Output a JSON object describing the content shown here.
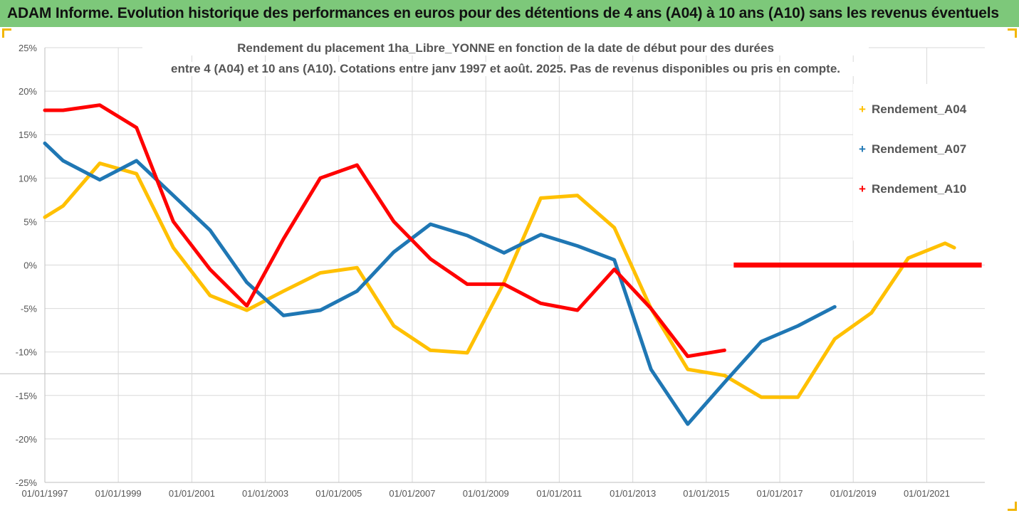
{
  "banner": {
    "title": "ADAM Informe. Evolution historique des performances en euros pour des détentions de 4 ans (A04) à 10 ans (A10) sans les revenus éventuels"
  },
  "colors": {
    "banner_bg": "#7dc87a",
    "gridline": "#d9d9d9",
    "corner_accent": "#f2b600"
  },
  "chart_data": {
    "type": "line",
    "title_line1": "Rendement du placement 1ha_Libre_YONNE en fonction de la date de début pour des durées",
    "title_line2": "entre 4 (A04) et 10 ans (A10). Cotations entre janv 1997 et août. 2025. Pas de revenus disponibles ou pris en compte.",
    "xlabel": "",
    "ylabel": "",
    "ylim": [
      -0.25,
      0.25
    ],
    "yticks": [
      0.25,
      0.2,
      0.15,
      0.1,
      0.05,
      0,
      -0.05,
      -0.1,
      -0.15,
      -0.2,
      -0.25
    ],
    "ytick_labels": [
      "25%",
      "20%",
      "15%",
      "10%",
      "5%",
      "0%",
      "-5%",
      "-10%",
      "-15%",
      "-20%",
      "-25%"
    ],
    "xlim": [
      "1997-01-01",
      "2022-08-01"
    ],
    "xticks": [
      "1997-01-01",
      "1999-01-01",
      "2001-01-01",
      "2003-01-01",
      "2005-01-01",
      "2007-01-01",
      "2009-01-01",
      "2011-01-01",
      "2013-01-01",
      "2015-01-01",
      "2017-01-01",
      "2019-01-01",
      "2021-01-01"
    ],
    "xtick_labels": [
      "01/01/1997",
      "01/01/1999",
      "01/01/2001",
      "01/01/2003",
      "01/01/2005",
      "01/01/2007",
      "01/01/2009",
      "01/01/2011",
      "01/01/2013",
      "01/01/2015",
      "01/01/2017",
      "01/01/2019",
      "01/01/2021"
    ],
    "grid": true,
    "legend_position": "right",
    "series": [
      {
        "name": "Rendement_A04",
        "color": "#ffc000",
        "points": [
          [
            "1997-01-01",
            0.055
          ],
          [
            "1997-07-01",
            0.068
          ],
          [
            "1998-07-01",
            0.117
          ],
          [
            "1999-07-01",
            0.105
          ],
          [
            "2000-07-01",
            0.02
          ],
          [
            "2001-07-01",
            -0.035
          ],
          [
            "2002-07-01",
            -0.052
          ],
          [
            "2003-07-01",
            -0.03
          ],
          [
            "2004-07-01",
            -0.009
          ],
          [
            "2005-07-01",
            -0.003
          ],
          [
            "2006-07-01",
            -0.07
          ],
          [
            "2007-07-01",
            -0.098
          ],
          [
            "2008-07-01",
            -0.101
          ],
          [
            "2009-07-01",
            -0.02
          ],
          [
            "2010-07-01",
            0.077
          ],
          [
            "2011-07-01",
            0.08
          ],
          [
            "2012-07-01",
            0.043
          ],
          [
            "2013-07-01",
            -0.05
          ],
          [
            "2014-07-01",
            -0.12
          ],
          [
            "2015-07-01",
            -0.127
          ],
          [
            "2016-07-01",
            -0.152
          ],
          [
            "2017-07-01",
            -0.152
          ],
          [
            "2018-07-01",
            -0.085
          ],
          [
            "2019-07-01",
            -0.055
          ],
          [
            "2020-07-01",
            0.008
          ],
          [
            "2021-07-01",
            0.025
          ],
          [
            "2021-10-01",
            0.02
          ]
        ]
      },
      {
        "name": "Rendement_A07",
        "color": "#1f77b4",
        "points": [
          [
            "1997-01-01",
            0.14
          ],
          [
            "1997-07-01",
            0.12
          ],
          [
            "1998-07-01",
            0.098
          ],
          [
            "1999-07-01",
            0.12
          ],
          [
            "2000-07-01",
            0.08
          ],
          [
            "2001-07-01",
            0.04
          ],
          [
            "2002-07-01",
            -0.02
          ],
          [
            "2003-07-01",
            -0.058
          ],
          [
            "2004-07-01",
            -0.052
          ],
          [
            "2005-07-01",
            -0.03
          ],
          [
            "2006-07-01",
            0.015
          ],
          [
            "2007-07-01",
            0.047
          ],
          [
            "2008-07-01",
            0.034
          ],
          [
            "2009-07-01",
            0.014
          ],
          [
            "2010-07-01",
            0.035
          ],
          [
            "2011-07-01",
            0.022
          ],
          [
            "2012-07-01",
            0.006
          ],
          [
            "2013-07-01",
            -0.12
          ],
          [
            "2014-07-01",
            -0.183
          ],
          [
            "2015-07-01",
            -0.135
          ],
          [
            "2016-07-01",
            -0.088
          ],
          [
            "2017-07-01",
            -0.07
          ],
          [
            "2018-07-01",
            -0.048
          ]
        ]
      },
      {
        "name": "Rendement_A10",
        "color": "#ff0000",
        "points": [
          [
            "1997-01-01",
            0.178
          ],
          [
            "1997-07-01",
            0.178
          ],
          [
            "1998-07-01",
            0.184
          ],
          [
            "1999-07-01",
            0.158
          ],
          [
            "2000-07-01",
            0.05
          ],
          [
            "2001-07-01",
            -0.005
          ],
          [
            "2002-07-01",
            -0.047
          ],
          [
            "2003-07-01",
            0.03
          ],
          [
            "2004-07-01",
            0.1
          ],
          [
            "2005-07-01",
            0.115
          ],
          [
            "2006-07-01",
            0.05
          ],
          [
            "2007-07-01",
            0.007
          ],
          [
            "2008-07-01",
            -0.022
          ],
          [
            "2009-07-01",
            -0.022
          ],
          [
            "2010-07-01",
            -0.044
          ],
          [
            "2011-07-01",
            -0.052
          ],
          [
            "2012-07-01",
            -0.005
          ],
          [
            "2013-07-01",
            -0.05
          ],
          [
            "2014-07-01",
            -0.105
          ],
          [
            "2015-07-01",
            -0.098
          ]
        ],
        "flat_segment": {
          "from": "2015-10-01",
          "to": "2022-07-01",
          "value": 0.0
        }
      }
    ]
  }
}
